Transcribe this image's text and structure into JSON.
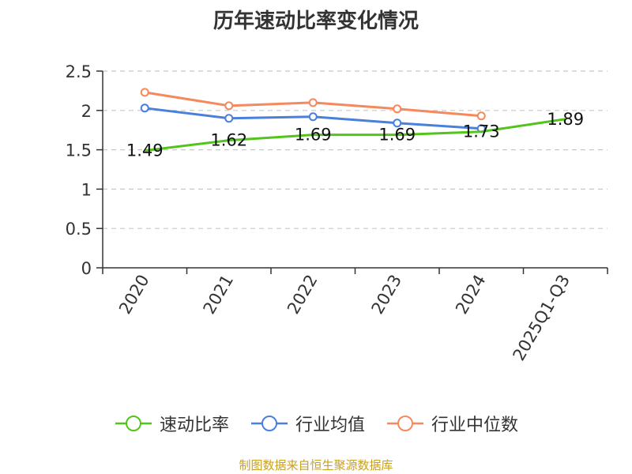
{
  "chart_data": {
    "type": "line",
    "title": "历年速动比率变化情况",
    "categories": [
      "2020",
      "2021",
      "2022",
      "2023",
      "2024",
      "2025Q1-Q3"
    ],
    "ylim": [
      0,
      2.5
    ],
    "yticks": [
      "0",
      "0.5",
      "1",
      "1.5",
      "2",
      "2.5"
    ],
    "grid": true,
    "legend_position": "bottom",
    "series": [
      {
        "name": "速动比率",
        "color": "#52c41a",
        "values": [
          1.49,
          1.62,
          1.69,
          1.69,
          1.73,
          1.89
        ],
        "labels": [
          "1.49",
          "1.62",
          "1.69",
          "1.69",
          "1.73",
          "1.89"
        ],
        "show_markers": false
      },
      {
        "name": "行业均值",
        "color": "#4a7fdc",
        "values": [
          2.03,
          1.9,
          1.92,
          1.84,
          1.77,
          null
        ],
        "show_markers": true
      },
      {
        "name": "行业中位数",
        "color": "#f5895b",
        "values": [
          2.23,
          2.06,
          2.1,
          2.02,
          1.93,
          null
        ],
        "show_markers": true
      }
    ],
    "source_note": "制图数据来自恒生聚源数据库"
  }
}
